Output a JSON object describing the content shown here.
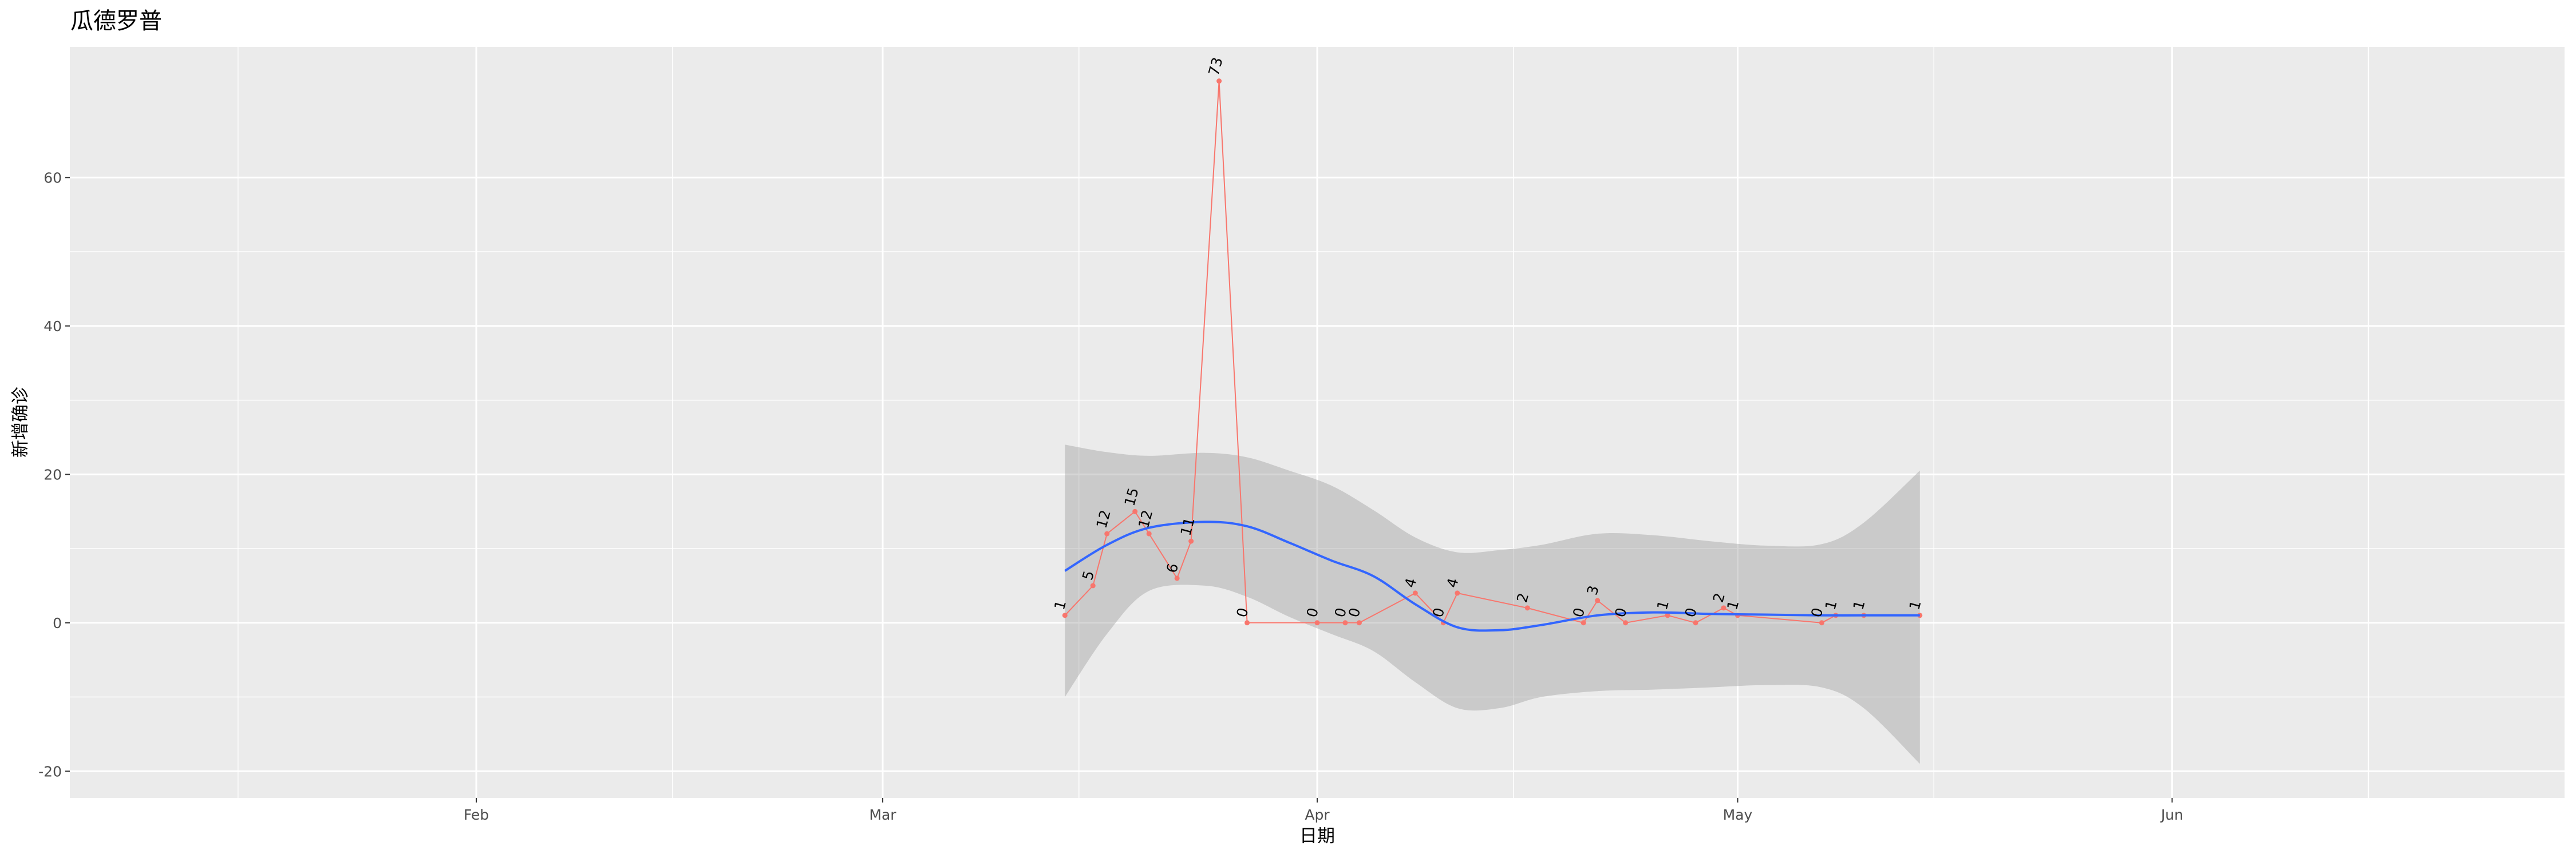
{
  "chart_data": {
    "type": "line",
    "title": "瓜德罗普",
    "xlabel": "日期",
    "ylabel": "新增确诊",
    "x_tick_labels": [
      "Feb",
      "Mar",
      "Apr",
      "May",
      "Jun"
    ],
    "x_ticks": [
      "2020-02-01",
      "2020-03-01",
      "2020-04-01",
      "2020-05-01",
      "2020-06-01"
    ],
    "x_minor_ticks": [
      "2020-01-15",
      "2020-02-15",
      "2020-03-15",
      "2020-04-15",
      "2020-05-15",
      "2020-06-15"
    ],
    "xlim": [
      "2020-01-03",
      "2020-06-29"
    ],
    "y_ticks": [
      -20,
      0,
      20,
      40,
      60
    ],
    "ylim": [
      -23.6,
      77.6
    ],
    "grid": true,
    "series": [
      {
        "color": "#F8766D",
        "points": [
          {
            "x": "2020-03-14",
            "y": 1
          },
          {
            "x": "2020-03-16",
            "y": 5
          },
          {
            "x": "2020-03-17",
            "y": 12
          },
          {
            "x": "2020-03-19",
            "y": 15
          },
          {
            "x": "2020-03-20",
            "y": 12
          },
          {
            "x": "2020-03-22",
            "y": 6
          },
          {
            "x": "2020-03-23",
            "y": 11
          },
          {
            "x": "2020-03-25",
            "y": 73
          },
          {
            "x": "2020-03-27",
            "y": 0
          },
          {
            "x": "2020-04-01",
            "y": 0
          },
          {
            "x": "2020-04-03",
            "y": 0
          },
          {
            "x": "2020-04-04",
            "y": 0
          },
          {
            "x": "2020-04-08",
            "y": 4
          },
          {
            "x": "2020-04-10",
            "y": 0
          },
          {
            "x": "2020-04-11",
            "y": 4
          },
          {
            "x": "2020-04-16",
            "y": 2
          },
          {
            "x": "2020-04-20",
            "y": 0
          },
          {
            "x": "2020-04-21",
            "y": 3
          },
          {
            "x": "2020-04-23",
            "y": 0
          },
          {
            "x": "2020-04-26",
            "y": 1
          },
          {
            "x": "2020-04-28",
            "y": 0
          },
          {
            "x": "2020-04-30",
            "y": 2
          },
          {
            "x": "2020-05-01",
            "y": 1
          },
          {
            "x": "2020-05-07",
            "y": 0
          },
          {
            "x": "2020-05-08",
            "y": 1
          },
          {
            "x": "2020-05-10",
            "y": 1
          },
          {
            "x": "2020-05-14",
            "y": 1
          }
        ]
      }
    ],
    "smooth": {
      "color": "#3366FF",
      "band_color": "#999999",
      "points": [
        {
          "x": "2020-03-14",
          "y": 7,
          "lo": -10,
          "hi": 24
        },
        {
          "x": "2020-03-17",
          "y": 10.5,
          "lo": -1.5,
          "hi": 23
        },
        {
          "x": "2020-03-20",
          "y": 12.8,
          "lo": 4.3,
          "hi": 22.5
        },
        {
          "x": "2020-03-24",
          "y": 13.6,
          "lo": 5,
          "hi": 22.9
        },
        {
          "x": "2020-03-27",
          "y": 13,
          "lo": 3.5,
          "hi": 22.3
        },
        {
          "x": "2020-03-30",
          "y": 10.8,
          "lo": 0.8,
          "hi": 20.5
        },
        {
          "x": "2020-04-02",
          "y": 8.4,
          "lo": -1.5,
          "hi": 18.5
        },
        {
          "x": "2020-04-05",
          "y": 6.3,
          "lo": -3.8,
          "hi": 15.2
        },
        {
          "x": "2020-04-08",
          "y": 2.5,
          "lo": -8,
          "hi": 11.5
        },
        {
          "x": "2020-04-11",
          "y": -0.6,
          "lo": -11.5,
          "hi": 9.5
        },
        {
          "x": "2020-04-14",
          "y": -1,
          "lo": -11.5,
          "hi": 9.8
        },
        {
          "x": "2020-04-17",
          "y": -0.3,
          "lo": -10,
          "hi": 10.5
        },
        {
          "x": "2020-04-21",
          "y": 1,
          "lo": -9.2,
          "hi": 12
        },
        {
          "x": "2020-04-25",
          "y": 1.4,
          "lo": -9,
          "hi": 11.8
        },
        {
          "x": "2020-04-29",
          "y": 1.2,
          "lo": -8.7,
          "hi": 11
        },
        {
          "x": "2020-05-03",
          "y": 1.1,
          "lo": -8.4,
          "hi": 10.4
        },
        {
          "x": "2020-05-07",
          "y": 1,
          "lo": -8.7,
          "hi": 10.6
        },
        {
          "x": "2020-05-10",
          "y": 1,
          "lo": -11.5,
          "hi": 13.5
        },
        {
          "x": "2020-05-14",
          "y": 1,
          "lo": -19,
          "hi": 20.5
        }
      ]
    }
  }
}
